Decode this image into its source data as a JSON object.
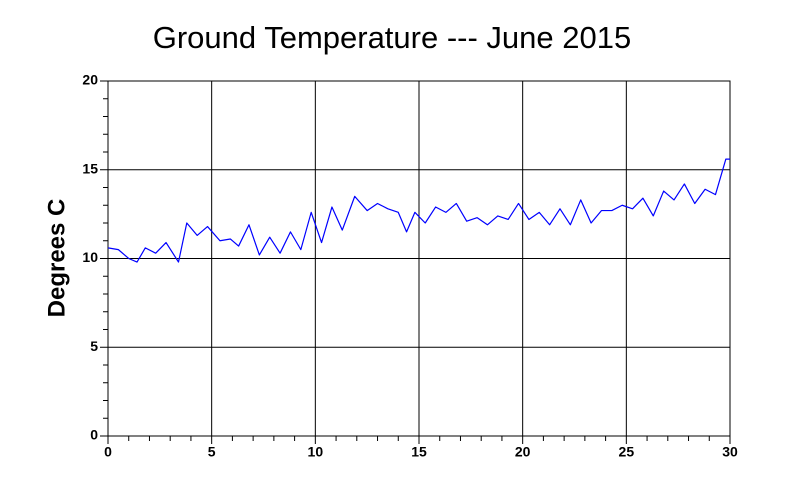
{
  "chart_data": {
    "type": "line",
    "title": "Ground Temperature --- June 2015",
    "y_label": "Degrees C",
    "x": [
      0,
      0.5,
      1.0,
      1.4,
      1.8,
      2.3,
      2.8,
      3.4,
      3.8,
      4.3,
      4.8,
      5.4,
      5.9,
      6.3,
      6.8,
      7.3,
      7.8,
      8.3,
      8.8,
      9.3,
      9.8,
      10.3,
      10.8,
      11.3,
      11.9,
      12.5,
      13.0,
      13.5,
      14.0,
      14.4,
      14.8,
      15.3,
      15.8,
      16.3,
      16.8,
      17.3,
      17.8,
      18.3,
      18.8,
      19.3,
      19.8,
      20.3,
      20.8,
      21.3,
      21.8,
      22.3,
      22.8,
      23.3,
      23.8,
      24.3,
      24.8,
      25.3,
      25.8,
      26.3,
      26.8,
      27.3,
      27.8,
      28.3,
      28.8,
      29.3,
      29.8,
      30.0
    ],
    "series": [
      {
        "color": "#0000ff",
        "values": [
          10.6,
          10.5,
          10.0,
          9.8,
          10.6,
          10.3,
          10.9,
          9.8,
          12.0,
          11.3,
          11.8,
          11.0,
          11.1,
          10.7,
          11.9,
          10.2,
          11.2,
          10.3,
          11.5,
          10.5,
          12.6,
          10.9,
          12.9,
          11.6,
          13.5,
          12.7,
          13.1,
          12.8,
          12.6,
          11.5,
          12.6,
          12.0,
          12.9,
          12.6,
          13.1,
          12.1,
          12.3,
          11.9,
          12.4,
          12.2,
          13.1,
          12.2,
          12.6,
          11.9,
          12.8,
          11.9,
          13.3,
          12.0,
          12.7,
          12.7,
          13.0,
          12.8,
          13.4,
          12.4,
          13.8,
          13.3,
          14.2,
          13.1,
          13.9,
          13.6,
          15.6,
          15.6
        ]
      }
    ],
    "xlim": [
      0,
      30
    ],
    "ylim": [
      0,
      20
    ],
    "xticks": [
      0,
      5,
      10,
      15,
      20,
      25,
      30
    ],
    "yticks": [
      0,
      5,
      10,
      15,
      20
    ],
    "xminor_ticks": [
      1,
      2,
      3,
      4,
      6,
      7,
      8,
      9,
      11,
      12,
      13,
      14,
      16,
      17,
      18,
      19,
      21,
      22,
      23,
      24,
      26,
      27,
      28,
      29
    ],
    "yminor_ticks": [
      1,
      2,
      3,
      4,
      6,
      7,
      8,
      9,
      11,
      12,
      13,
      14,
      16,
      17,
      18,
      19
    ],
    "grid": true
  }
}
